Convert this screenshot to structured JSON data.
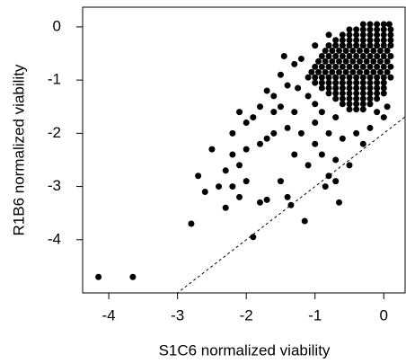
{
  "chart_data": {
    "type": "scatter",
    "x_label": "S1C6 normalized viability",
    "y_label": "R1B6 normalized viability",
    "xlim": [
      -4.38,
      0.31
    ],
    "ylim": [
      -5.0,
      0.37
    ],
    "xticks": [
      -4,
      -3,
      -2,
      -1,
      0
    ],
    "yticks": [
      0,
      -1,
      -2,
      -3,
      -4
    ],
    "color": "#000000",
    "reference_line": {
      "slope": 1,
      "intercept": -2
    },
    "points": [
      [
        -0.3,
        0.05
      ],
      [
        -0.2,
        0.05
      ],
      [
        -0.1,
        0.05
      ],
      [
        0.0,
        0.05
      ],
      [
        0.08,
        0.05
      ],
      [
        -0.5,
        -0.05
      ],
      [
        -0.4,
        -0.05
      ],
      [
        -0.3,
        -0.05
      ],
      [
        -0.2,
        -0.05
      ],
      [
        -0.1,
        -0.05
      ],
      [
        0.0,
        -0.05
      ],
      [
        0.1,
        -0.05
      ],
      [
        -0.6,
        -0.15
      ],
      [
        -0.5,
        -0.15
      ],
      [
        -0.4,
        -0.15
      ],
      [
        -0.3,
        -0.15
      ],
      [
        -0.2,
        -0.15
      ],
      [
        -0.1,
        -0.15
      ],
      [
        0.0,
        -0.15
      ],
      [
        0.1,
        -0.15
      ],
      [
        -0.7,
        -0.25
      ],
      [
        -0.6,
        -0.25
      ],
      [
        -0.5,
        -0.25
      ],
      [
        -0.4,
        -0.25
      ],
      [
        -0.3,
        -0.25
      ],
      [
        -0.2,
        -0.25
      ],
      [
        -0.1,
        -0.25
      ],
      [
        0.0,
        -0.25
      ],
      [
        0.1,
        -0.25
      ],
      [
        -0.8,
        -0.35
      ],
      [
        -0.7,
        -0.35
      ],
      [
        -0.6,
        -0.35
      ],
      [
        -0.5,
        -0.35
      ],
      [
        -0.4,
        -0.35
      ],
      [
        -0.3,
        -0.35
      ],
      [
        -0.2,
        -0.35
      ],
      [
        -0.1,
        -0.35
      ],
      [
        0.0,
        -0.35
      ],
      [
        0.1,
        -0.35
      ],
      [
        -0.85,
        -0.45
      ],
      [
        -0.75,
        -0.45
      ],
      [
        -0.65,
        -0.45
      ],
      [
        -0.55,
        -0.45
      ],
      [
        -0.45,
        -0.45
      ],
      [
        -0.35,
        -0.45
      ],
      [
        -0.25,
        -0.45
      ],
      [
        -0.15,
        -0.45
      ],
      [
        -0.05,
        -0.45
      ],
      [
        0.05,
        -0.45
      ],
      [
        -0.9,
        -0.55
      ],
      [
        -0.8,
        -0.55
      ],
      [
        -0.7,
        -0.55
      ],
      [
        -0.6,
        -0.55
      ],
      [
        -0.5,
        -0.55
      ],
      [
        -0.4,
        -0.55
      ],
      [
        -0.3,
        -0.55
      ],
      [
        -0.2,
        -0.55
      ],
      [
        -0.1,
        -0.55
      ],
      [
        0.0,
        -0.55
      ],
      [
        0.1,
        -0.55
      ],
      [
        -0.95,
        -0.65
      ],
      [
        -0.85,
        -0.65
      ],
      [
        -0.75,
        -0.65
      ],
      [
        -0.65,
        -0.65
      ],
      [
        -0.55,
        -0.65
      ],
      [
        -0.45,
        -0.65
      ],
      [
        -0.35,
        -0.65
      ],
      [
        -0.25,
        -0.65
      ],
      [
        -0.15,
        -0.65
      ],
      [
        -0.05,
        -0.65
      ],
      [
        0.05,
        -0.65
      ],
      [
        -1.0,
        -0.75
      ],
      [
        -0.9,
        -0.75
      ],
      [
        -0.8,
        -0.75
      ],
      [
        -0.7,
        -0.75
      ],
      [
        -0.6,
        -0.75
      ],
      [
        -0.5,
        -0.75
      ],
      [
        -0.4,
        -0.75
      ],
      [
        -0.3,
        -0.75
      ],
      [
        -0.2,
        -0.75
      ],
      [
        -0.1,
        -0.75
      ],
      [
        0.0,
        -0.75
      ],
      [
        0.1,
        -0.75
      ],
      [
        -1.05,
        -0.85
      ],
      [
        -0.95,
        -0.85
      ],
      [
        -0.85,
        -0.85
      ],
      [
        -0.75,
        -0.85
      ],
      [
        -0.65,
        -0.85
      ],
      [
        -0.55,
        -0.85
      ],
      [
        -0.45,
        -0.85
      ],
      [
        -0.35,
        -0.85
      ],
      [
        -0.25,
        -0.85
      ],
      [
        -0.15,
        -0.85
      ],
      [
        -0.05,
        -0.85
      ],
      [
        0.05,
        -0.85
      ],
      [
        -1.1,
        -0.95
      ],
      [
        -1.0,
        -0.95
      ],
      [
        -0.9,
        -0.95
      ],
      [
        -0.8,
        -0.95
      ],
      [
        -0.7,
        -0.95
      ],
      [
        -0.6,
        -0.95
      ],
      [
        -0.5,
        -0.95
      ],
      [
        -0.4,
        -0.95
      ],
      [
        -0.3,
        -0.95
      ],
      [
        -0.2,
        -0.95
      ],
      [
        -0.1,
        -0.95
      ],
      [
        0.0,
        -0.95
      ],
      [
        0.1,
        -0.95
      ],
      [
        -1.0,
        -1.05
      ],
      [
        -0.9,
        -1.05
      ],
      [
        -0.8,
        -1.05
      ],
      [
        -0.7,
        -1.05
      ],
      [
        -0.6,
        -1.05
      ],
      [
        -0.5,
        -1.05
      ],
      [
        -0.4,
        -1.05
      ],
      [
        -0.3,
        -1.05
      ],
      [
        -0.2,
        -1.05
      ],
      [
        -0.1,
        -1.05
      ],
      [
        0.0,
        -1.05
      ],
      [
        -0.9,
        -1.15
      ],
      [
        -0.8,
        -1.15
      ],
      [
        -0.7,
        -1.15
      ],
      [
        -0.6,
        -1.15
      ],
      [
        -0.5,
        -1.15
      ],
      [
        -0.4,
        -1.15
      ],
      [
        -0.3,
        -1.15
      ],
      [
        -0.2,
        -1.15
      ],
      [
        -0.1,
        -1.15
      ],
      [
        0.0,
        -1.15
      ],
      [
        -0.8,
        -1.25
      ],
      [
        -0.7,
        -1.25
      ],
      [
        -0.6,
        -1.25
      ],
      [
        -0.5,
        -1.25
      ],
      [
        -0.4,
        -1.25
      ],
      [
        -0.3,
        -1.25
      ],
      [
        -0.2,
        -1.25
      ],
      [
        -0.1,
        -1.25
      ],
      [
        0.0,
        -1.25
      ],
      [
        -0.7,
        -1.35
      ],
      [
        -0.6,
        -1.35
      ],
      [
        -0.5,
        -1.35
      ],
      [
        -0.4,
        -1.35
      ],
      [
        -0.3,
        -1.35
      ],
      [
        -0.2,
        -1.35
      ],
      [
        -0.1,
        -1.35
      ],
      [
        -0.6,
        -1.45
      ],
      [
        -0.5,
        -1.45
      ],
      [
        -0.4,
        -1.45
      ],
      [
        -0.3,
        -1.45
      ],
      [
        -0.2,
        -1.45
      ],
      [
        -0.5,
        -1.55
      ],
      [
        -0.4,
        -1.55
      ],
      [
        -0.3,
        -1.55
      ],
      [
        -1.5,
        -0.9
      ],
      [
        -1.3,
        -0.7
      ],
      [
        -1.2,
        -0.6
      ],
      [
        -1.4,
        -1.1
      ],
      [
        -1.6,
        -1.3
      ],
      [
        -1.7,
        -1.2
      ],
      [
        -1.8,
        -1.5
      ],
      [
        -2.0,
        -1.8
      ],
      [
        -1.9,
        -1.7
      ],
      [
        -2.1,
        -1.6
      ],
      [
        -2.2,
        -2.0
      ],
      [
        -1.6,
        -1.6
      ],
      [
        -1.5,
        -1.5
      ],
      [
        -1.3,
        -1.6
      ],
      [
        -1.4,
        -1.9
      ],
      [
        -1.7,
        -2.1
      ],
      [
        -2.0,
        -2.3
      ],
      [
        -2.2,
        -2.4
      ],
      [
        -2.3,
        -2.7
      ],
      [
        -2.5,
        -2.3
      ],
      [
        -2.1,
        -2.6
      ],
      [
        -1.8,
        -2.2
      ],
      [
        -1.6,
        -2.0
      ],
      [
        -1.2,
        -2.0
      ],
      [
        -1.0,
        -2.2
      ],
      [
        -0.8,
        -2.0
      ],
      [
        -0.6,
        -2.1
      ],
      [
        -0.4,
        -2.0
      ],
      [
        -0.3,
        -2.2
      ],
      [
        -0.2,
        -1.9
      ],
      [
        -0.9,
        -2.4
      ],
      [
        -0.7,
        -2.5
      ],
      [
        -1.1,
        -2.6
      ],
      [
        -1.3,
        -2.4
      ],
      [
        -0.5,
        -2.6
      ],
      [
        -0.8,
        -2.8
      ],
      [
        -1.5,
        -2.9
      ],
      [
        -2.0,
        -2.9
      ],
      [
        -2.2,
        -3.0
      ],
      [
        -2.4,
        -3.0
      ],
      [
        -2.6,
        -3.1
      ],
      [
        -2.8,
        -3.7
      ],
      [
        -2.3,
        -3.4
      ],
      [
        -2.1,
        -3.2
      ],
      [
        -1.9,
        -3.95
      ],
      [
        -1.8,
        -3.3
      ],
      [
        -1.7,
        -3.25
      ],
      [
        -1.4,
        -3.2
      ],
      [
        -1.35,
        -3.35
      ],
      [
        -1.15,
        -3.65
      ],
      [
        -0.85,
        -3.0
      ],
      [
        -0.65,
        -3.3
      ],
      [
        -0.7,
        -2.9
      ],
      [
        -2.7,
        -2.8
      ],
      [
        -4.15,
        -4.7
      ],
      [
        -3.65,
        -4.7
      ],
      [
        -1.1,
        -1.3
      ],
      [
        -1.25,
        -1.15
      ],
      [
        -1.0,
        -1.45
      ],
      [
        -0.9,
        -1.6
      ],
      [
        -0.7,
        -1.7
      ],
      [
        -1.0,
        -1.8
      ],
      [
        0.05,
        -1.5
      ],
      [
        0.0,
        -1.7
      ],
      [
        -0.1,
        -1.6
      ],
      [
        -1.45,
        -0.55
      ],
      [
        -1.0,
        -0.35
      ],
      [
        -0.8,
        -0.15
      ]
    ]
  }
}
